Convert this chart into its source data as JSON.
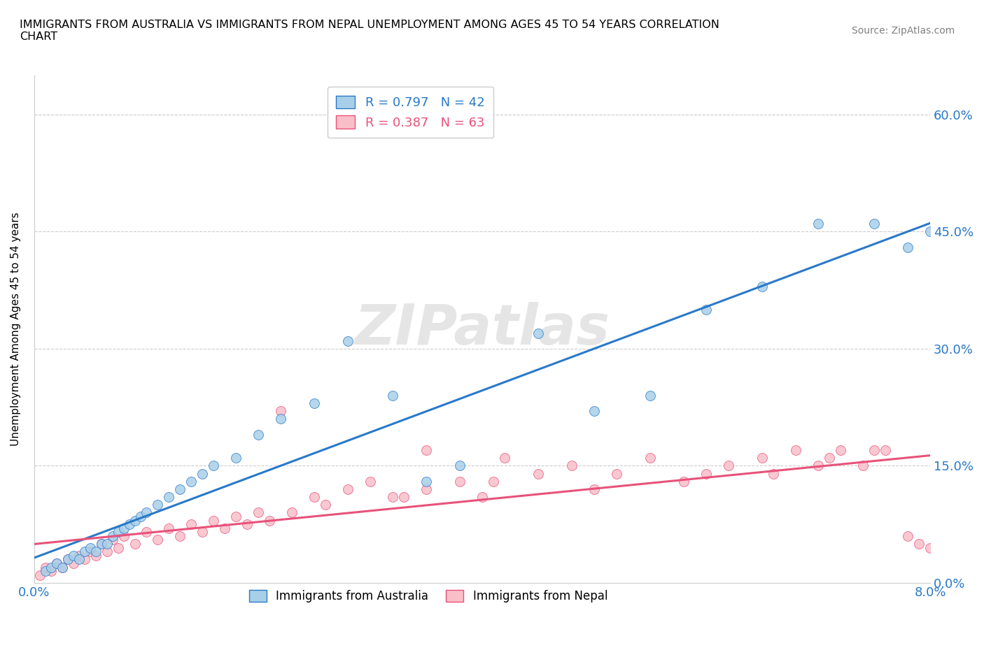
{
  "title": "IMMIGRANTS FROM AUSTRALIA VS IMMIGRANTS FROM NEPAL UNEMPLOYMENT AMONG AGES 45 TO 54 YEARS CORRELATION\nCHART",
  "source": "Source: ZipAtlas.com",
  "ylabel": "Unemployment Among Ages 45 to 54 years",
  "y_ticks": [
    0.0,
    0.15,
    0.3,
    0.45,
    0.6
  ],
  "y_tick_labels": [
    "0.0%",
    "15.0%",
    "30.0%",
    "45.0%",
    "60.0%"
  ],
  "xlim": [
    0.0,
    8.0
  ],
  "ylim": [
    0.0,
    65.0
  ],
  "legend_australia": "Immigrants from Australia",
  "legend_nepal": "Immigrants from Nepal",
  "R_australia": 0.797,
  "N_australia": 42,
  "R_nepal": 0.387,
  "N_nepal": 63,
  "color_australia": "#a8cfe8",
  "color_nepal": "#f9bfc9",
  "line_color_australia": "#2979c9",
  "line_color_nepal": "#e8527a",
  "watermark": "ZIPatlas",
  "australia_x": [
    0.1,
    0.15,
    0.2,
    0.25,
    0.3,
    0.35,
    0.4,
    0.45,
    0.5,
    0.55,
    0.6,
    0.65,
    0.7,
    0.75,
    0.8,
    0.85,
    0.9,
    0.95,
    1.0,
    1.1,
    1.2,
    1.3,
    1.4,
    1.5,
    1.6,
    1.8,
    2.0,
    2.2,
    2.5,
    2.8,
    3.2,
    3.5,
    3.8,
    4.5,
    5.0,
    5.5,
    6.0,
    6.5,
    7.0,
    7.5,
    7.8,
    8.0
  ],
  "australia_y": [
    1.5,
    2.0,
    2.5,
    2.0,
    3.0,
    3.5,
    3.0,
    4.0,
    4.5,
    4.0,
    5.0,
    5.0,
    6.0,
    6.5,
    7.0,
    7.5,
    8.0,
    8.5,
    9.0,
    10.0,
    11.0,
    12.0,
    13.0,
    14.0,
    15.0,
    16.0,
    19.0,
    21.0,
    23.0,
    31.0,
    24.0,
    13.0,
    15.0,
    32.0,
    22.0,
    24.0,
    35.0,
    38.0,
    46.0,
    46.0,
    43.0,
    45.0
  ],
  "nepal_x": [
    0.05,
    0.1,
    0.15,
    0.2,
    0.25,
    0.3,
    0.35,
    0.4,
    0.45,
    0.5,
    0.55,
    0.6,
    0.65,
    0.7,
    0.75,
    0.8,
    0.9,
    1.0,
    1.1,
    1.2,
    1.3,
    1.4,
    1.5,
    1.6,
    1.7,
    1.8,
    1.9,
    2.0,
    2.1,
    2.2,
    2.3,
    2.5,
    2.8,
    3.0,
    3.2,
    3.5,
    3.8,
    4.0,
    4.5,
    5.0,
    5.5,
    6.0,
    6.5,
    6.8,
    7.0,
    7.2,
    7.5,
    7.8,
    8.0,
    3.5,
    4.2,
    4.8,
    5.2,
    5.8,
    6.2,
    6.6,
    7.1,
    7.4,
    7.6,
    7.9,
    2.6,
    3.3,
    4.1
  ],
  "nepal_y": [
    1.0,
    2.0,
    1.5,
    2.5,
    2.0,
    3.0,
    2.5,
    3.5,
    3.0,
    4.0,
    3.5,
    5.0,
    4.0,
    5.5,
    4.5,
    6.0,
    5.0,
    6.5,
    5.5,
    7.0,
    6.0,
    7.5,
    6.5,
    8.0,
    7.0,
    8.5,
    7.5,
    9.0,
    8.0,
    22.0,
    9.0,
    11.0,
    12.0,
    13.0,
    11.0,
    12.0,
    13.0,
    11.0,
    14.0,
    12.0,
    16.0,
    14.0,
    16.0,
    17.0,
    15.0,
    17.0,
    17.0,
    6.0,
    4.5,
    17.0,
    16.0,
    15.0,
    14.0,
    13.0,
    15.0,
    14.0,
    16.0,
    15.0,
    17.0,
    5.0,
    10.0,
    11.0,
    13.0
  ]
}
